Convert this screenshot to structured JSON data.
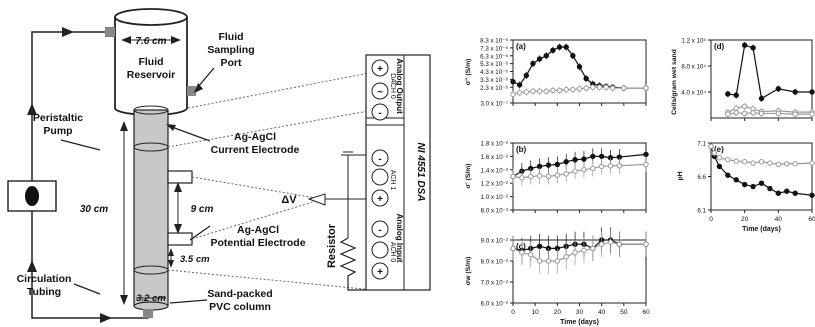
{
  "schematic": {
    "reservoir_width": "7.6 cm",
    "reservoir_label_1": "Fluid",
    "reservoir_label_2": "Reservoir",
    "sampling_label_1": "Fluid",
    "sampling_label_2": "Sampling",
    "sampling_label_3": "Port",
    "pump_label_1": "Peristaltic",
    "pump_label_2": "Pump",
    "current_label_1": "Ag-AgCl",
    "current_label_2": "Current Electrode",
    "potential_label_1": "Ag-AgCl",
    "potential_label_2": "Potential Electrode",
    "height_label": "30 cm",
    "spacing_label": "9 cm",
    "offset_label": "3.5 cm",
    "diameter_label": "3.2 cm",
    "column_label_1": "Sand-packed",
    "column_label_2": "PVC column",
    "tubing_label_1": "Circulation",
    "tubing_label_2": "Tubing",
    "dv_label": "ΔV",
    "resistor_label": "Resistor",
    "daq_label": "NI 4551 DSA",
    "analog_output_label": "Analog Output",
    "analog_input_label": "Analog Input",
    "dach_label": "DACH 0",
    "ach1_label": "ACH 1",
    "ach0_label": "ACH 0",
    "plus": "+",
    "minus": "-",
    "tilde": "~"
  },
  "colors": {
    "filled": "#111111",
    "open": "#999999",
    "column": "#c8c8c8"
  },
  "chart_data": [
    {
      "type": "line",
      "panel": "(a)",
      "ylabel": "σ'' (S/m)",
      "yticks": [
        "8.3 x 10⁻⁶",
        "7.3 x 10⁻⁶",
        "6.3 x 10⁻⁶",
        "5.3 x 10⁻⁶",
        "4.3 x 10⁻⁶",
        "3.3 x 10⁻⁶",
        "2.3 x 10⁻⁶",
        "3.0 x 10⁻⁷"
      ],
      "x": [
        0,
        3,
        6,
        9,
        12,
        15,
        18,
        21,
        24,
        27,
        30,
        33,
        36,
        39,
        42,
        45,
        50,
        60
      ],
      "series": [
        {
          "values": [
            3.0,
            2.6,
            3.8,
            5.3,
            5.9,
            6.3,
            7.0,
            7.4,
            7.4,
            6.3,
            4.9,
            3.4,
            2.7,
            2.5,
            2.4,
            2.3,
            2.2,
            2.2
          ]
        },
        {
          "values": [
            1.4,
            1.6,
            1.7,
            1.8,
            1.8,
            1.8,
            1.9,
            1.9,
            2.0,
            2.0,
            2.1,
            2.2,
            2.3,
            2.3,
            2.3,
            2.2,
            2.2,
            2.2
          ]
        }
      ]
    },
    {
      "type": "line",
      "panel": "(b)",
      "ylabel": "σ' (S/m)",
      "yticks": [
        "1.8 x 10⁻²",
        "1.6 x 10⁻²",
        "1.4 x 10⁻²",
        "1.2 x 10⁻²",
        "1.0 x 10⁻²",
        "8.0 x 10⁻³"
      ],
      "x": [
        0,
        4,
        8,
        12,
        16,
        20,
        24,
        28,
        32,
        36,
        40,
        44,
        48,
        60
      ],
      "series": [
        {
          "values": [
            1.3,
            1.38,
            1.42,
            1.45,
            1.47,
            1.48,
            1.52,
            1.55,
            1.56,
            1.6,
            1.6,
            1.58,
            1.59,
            1.63
          ]
        },
        {
          "values": [
            1.3,
            1.28,
            1.3,
            1.31,
            1.3,
            1.32,
            1.34,
            1.38,
            1.4,
            1.42,
            1.45,
            1.46,
            1.46,
            1.48
          ]
        }
      ]
    },
    {
      "type": "line",
      "panel": "(c)",
      "ylabel": "σw (S/m)",
      "xlabel": "Time (days)",
      "yticks": [
        "9.0 x 10⁻²",
        "8.0 x 10⁻²",
        "7.0 x 10⁻²",
        "6.0 x 10⁻²"
      ],
      "xticks": [
        "0",
        "10",
        "20",
        "30",
        "40",
        "50",
        "60"
      ],
      "x": [
        0,
        4,
        8,
        12,
        16,
        20,
        24,
        28,
        32,
        36,
        40,
        44,
        48,
        60
      ],
      "series": [
        {
          "values": [
            0.086,
            0.085,
            0.086,
            0.087,
            0.086,
            0.086,
            0.087,
            0.088,
            0.088,
            0.086,
            0.09,
            0.09,
            0.088,
            0.088
          ]
        },
        {
          "values": [
            0.086,
            0.084,
            0.083,
            0.08,
            0.08,
            0.08,
            0.082,
            0.084,
            0.085,
            0.086,
            0.088,
            0.089,
            0.088,
            0.088
          ]
        }
      ]
    },
    {
      "type": "line",
      "panel": "(d)",
      "ylabel": "Cells/gram wet sand",
      "yticks": [
        "1.2 x 10⁵",
        "8.0 x 10⁴",
        "4.0 x 10⁴"
      ],
      "x": [
        10,
        15,
        20,
        25,
        30,
        40,
        50,
        60
      ],
      "series": [
        {
          "values": [
            3.7,
            3.5,
            11.2,
            10.8,
            3.0,
            4.5,
            4.0,
            4.0
          ]
        },
        {
          "values": [
            0.9,
            1.5,
            1.8,
            1.4,
            1.0,
            1.1,
            0.9,
            0.9
          ]
        },
        {
          "values": [
            0.6,
            0.8,
            0.7,
            0.8,
            0.7,
            0.7,
            0.6,
            0.6
          ]
        }
      ]
    },
    {
      "type": "line",
      "panel": "(e)",
      "ylabel": "pH",
      "xlabel": "Time (days)",
      "yticks": [
        "7.1",
        "6.6",
        "6.1"
      ],
      "xticks": [
        "0",
        "20",
        "40",
        "60"
      ],
      "x": [
        0,
        2,
        5,
        10,
        15,
        20,
        25,
        30,
        35,
        40,
        45,
        50,
        60
      ],
      "series": [
        {
          "values": [
            7.05,
            6.9,
            6.75,
            6.62,
            6.55,
            6.48,
            6.45,
            6.5,
            6.42,
            6.35,
            6.38,
            6.35,
            6.32
          ]
        },
        {
          "values": [
            7.05,
            6.95,
            6.88,
            6.85,
            6.83,
            6.82,
            6.8,
            6.82,
            6.8,
            6.78,
            6.79,
            6.79,
            6.8
          ]
        }
      ]
    }
  ]
}
